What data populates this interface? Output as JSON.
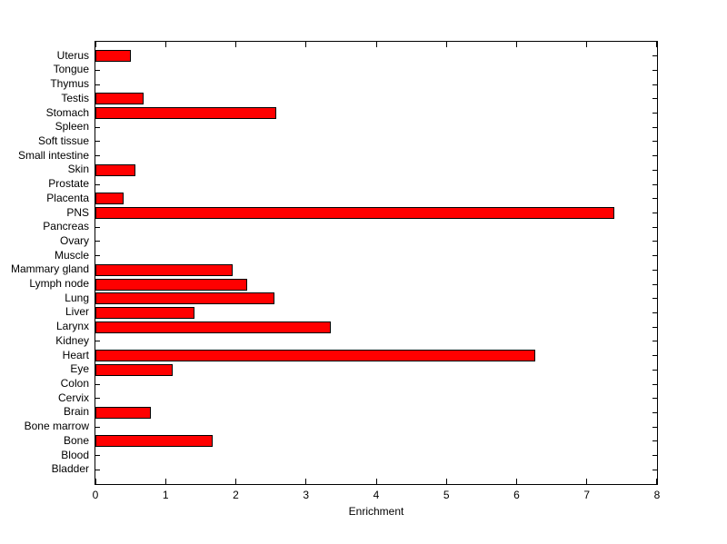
{
  "figure": {
    "background_color": "#FFFFFF",
    "axis_color": "#000000",
    "text_color": "#000000"
  },
  "chart_data": {
    "type": "bar",
    "orientation": "horizontal",
    "title": "",
    "xlabel": "Enrichment",
    "ylabel": "",
    "xlim": [
      0,
      8
    ],
    "x_ticks": [
      0,
      1,
      2,
      3,
      4,
      5,
      6,
      7,
      8
    ],
    "grid": false,
    "legend": "none",
    "bar_fill_color": "#FF0000",
    "bar_edge_color": "#000000",
    "categories": [
      "Uterus",
      "Tongue",
      "Thymus",
      "Testis",
      "Stomach",
      "Spleen",
      "Soft tissue",
      "Small intestine",
      "Skin",
      "Prostate",
      "Placenta",
      "PNS",
      "Pancreas",
      "Ovary",
      "Muscle",
      "Mammary gland",
      "Lymph node",
      "Lung",
      "Liver",
      "Larynx",
      "Kidney",
      "Heart",
      "Eye",
      "Colon",
      "Cervix",
      "Brain",
      "Bone marrow",
      "Bone",
      "Blood",
      "Bladder"
    ],
    "values": [
      0.51,
      0,
      0,
      0.68,
      2.57,
      0,
      0,
      0,
      0.57,
      0,
      0.4,
      7.39,
      0,
      0,
      0,
      1.96,
      2.16,
      2.55,
      1.41,
      3.35,
      0,
      6.27,
      1.1,
      0,
      0,
      0.79,
      0,
      1.67,
      0,
      0
    ]
  }
}
